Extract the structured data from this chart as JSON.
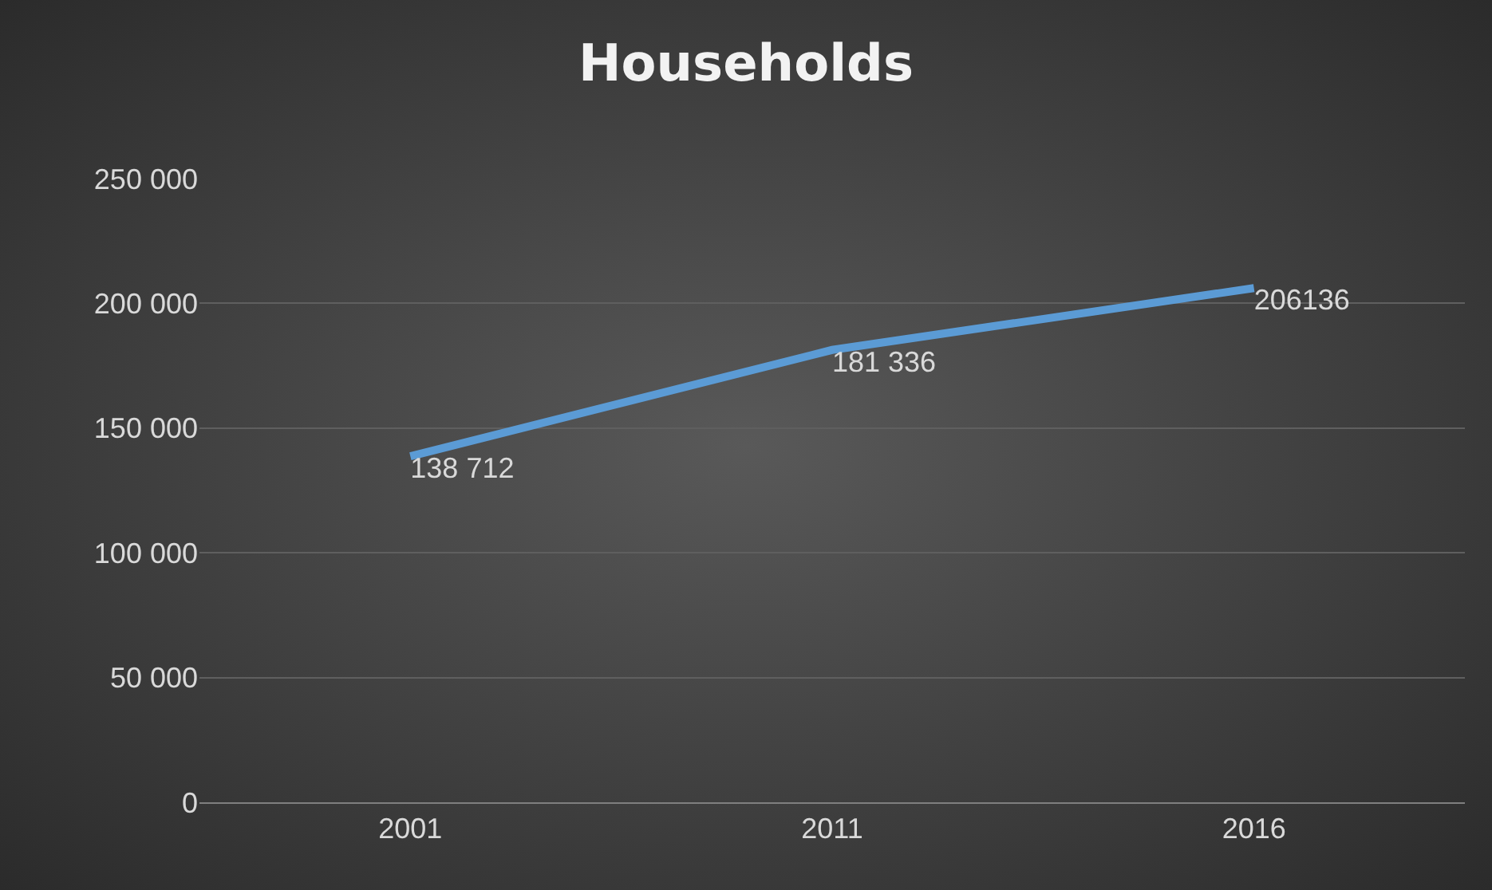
{
  "chart_data": {
    "type": "line",
    "title": "Households",
    "categories": [
      "2001",
      "2011",
      "2016"
    ],
    "series": [
      {
        "color": "#5b9bd5",
        "values": [
          138712,
          181336,
          206136
        ],
        "value_labels": [
          "138 712",
          "181 336",
          "206136"
        ]
      }
    ],
    "ylim": [
      0,
      250000
    ],
    "yticks": [
      0,
      {
        "value": 50000,
        "label": "50 000"
      },
      {
        "value": 100000,
        "label": "100 000"
      },
      {
        "value": 150000,
        "label": "150 000"
      },
      {
        "value": 200000,
        "label": "200 000"
      },
      {
        "value": 250000,
        "label": "250 000"
      }
    ],
    "grid": "y"
  }
}
